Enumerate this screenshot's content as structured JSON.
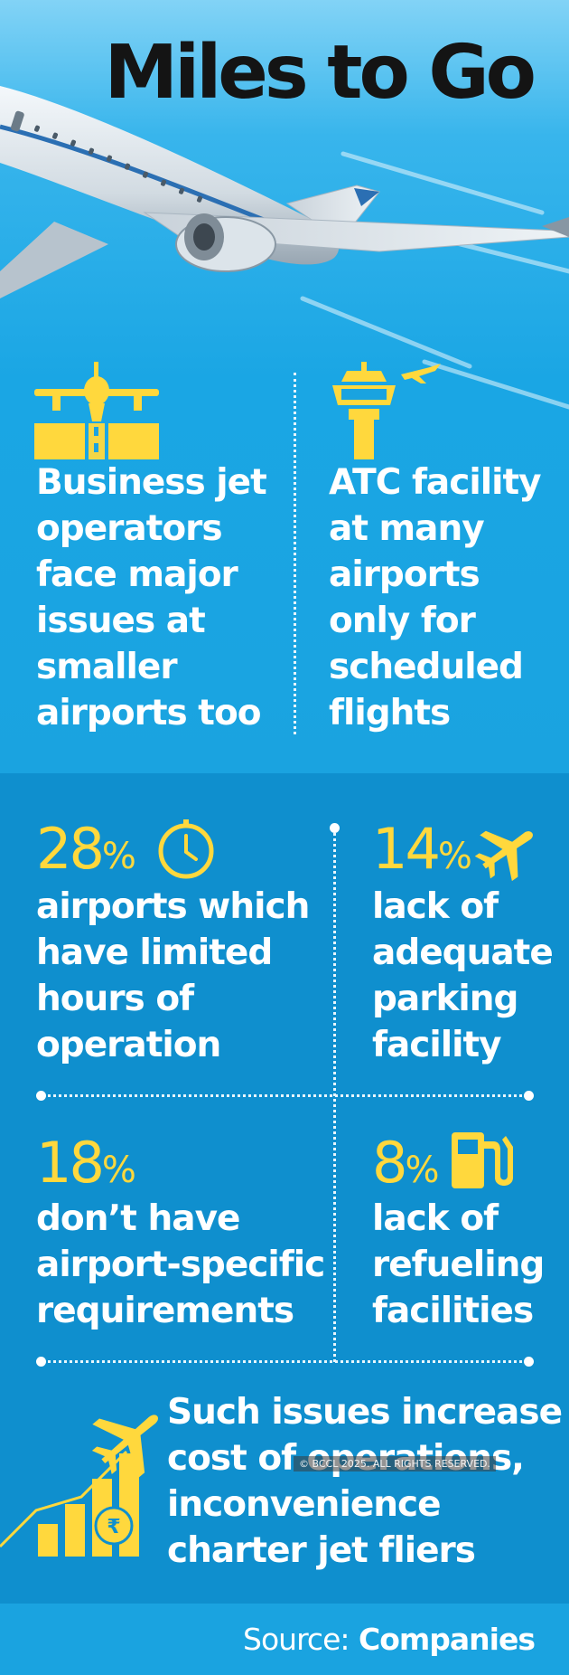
{
  "header": {
    "title": "Miles to Go"
  },
  "issues": {
    "left": [
      "Business jet",
      "operators",
      "face major",
      "issues at",
      "smaller",
      "airports too"
    ],
    "right": [
      "ATC facility",
      "at many",
      "airports",
      "only for",
      "scheduled",
      "flights"
    ]
  },
  "stats": [
    {
      "value": "28",
      "unit": "%",
      "icon": "clock-icon",
      "lines": [
        "airports which",
        "have limited",
        "hours of",
        "operation"
      ]
    },
    {
      "value": "14",
      "unit": "%",
      "icon": "airplane-icon",
      "lines": [
        "lack of",
        "adequate",
        "parking",
        "facility"
      ]
    },
    {
      "value": "18",
      "unit": "%",
      "icon": "",
      "lines": [
        "don’t have",
        "airport-specific",
        "requirements"
      ]
    },
    {
      "value": "8",
      "unit": "%",
      "icon": "fuel-pump-icon",
      "lines": [
        "lack of",
        "refueling",
        "facilities"
      ]
    }
  ],
  "conclusion": {
    "lines": [
      "Such issues increase",
      "cost of operations,",
      "inconvenience",
      "charter jet fliers"
    ]
  },
  "watermark": "© BCCL 2025. ALL RIGHTS RESERVED.",
  "footer": {
    "source_label": "Source:",
    "source_value": "Companies"
  },
  "colors": {
    "sky_top": "#82d3f6",
    "sky": "#1aa3e0",
    "panel": "#0f8fce",
    "accent": "#ffd83d",
    "text": "#ffffff",
    "title": "#141414"
  }
}
